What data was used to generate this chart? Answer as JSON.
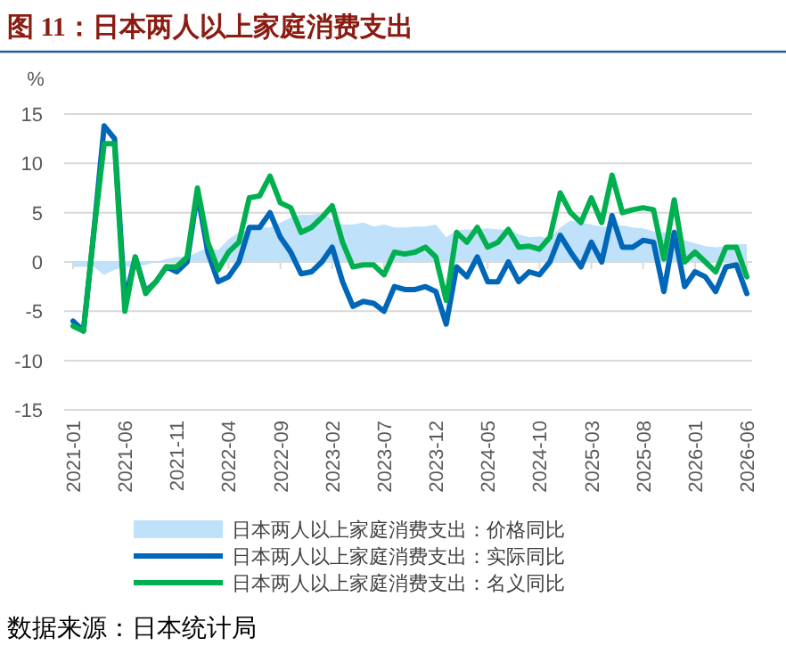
{
  "chart_data": {
    "type": "line",
    "title": "图 11：日本两人以上家庭消费支出",
    "ylabel": "%",
    "categories": [
      "2021-01",
      null,
      null,
      null,
      null,
      "2021-06",
      null,
      null,
      null,
      null,
      "2021-11",
      null,
      null,
      null,
      null,
      "2022-04",
      null,
      null,
      null,
      null,
      "2022-09",
      null,
      null,
      null,
      null,
      "2023-02",
      null,
      null,
      null,
      null,
      "2023-07",
      null,
      null,
      null,
      null,
      "2023-12",
      null,
      null,
      null,
      null,
      "2024-05",
      null,
      null,
      null,
      null,
      "2024-10",
      null,
      null,
      null,
      null,
      "2025-03",
      null,
      null,
      null,
      null,
      "2025-08",
      null,
      null,
      null,
      null,
      "2026-01",
      null,
      null,
      null,
      null,
      "2026-06"
    ],
    "series": [
      {
        "name": "日本两人以上家庭消费支出：价格同比",
        "type": "area",
        "color": "#bfe1fa",
        "values": [
          -0.5,
          -0.5,
          -0.5,
          -1.3,
          -0.8,
          -0.5,
          -0.5,
          -0.3,
          0,
          0.3,
          0.5,
          0.5,
          1,
          1.5,
          1.2,
          2.3,
          3,
          3.2,
          3.5,
          3.5,
          4,
          4.5,
          4.8,
          4.8,
          5,
          4.3,
          3.8,
          3.8,
          4,
          3.6,
          3.8,
          3.5,
          3.5,
          3.6,
          3.6,
          3.8,
          2.5,
          3.2,
          3.3,
          3.3,
          3.4,
          3.3,
          3.3,
          2.8,
          2.5,
          2.6,
          2.4,
          3.5,
          4.2,
          4,
          3.8,
          3.6,
          3.6,
          3.7,
          3.5,
          3.4,
          3.1,
          3,
          2.8,
          2.2,
          1.9,
          1.6,
          1.5,
          1.6,
          1.8,
          1.8
        ]
      },
      {
        "name": "日本两人以上家庭消费支出：实际同比",
        "color": "#0066b8",
        "values": [
          -6,
          -7,
          3,
          13.8,
          12.5,
          -4,
          0.5,
          -3,
          -2,
          -0.5,
          -1,
          0,
          7,
          1,
          -2,
          -1.5,
          0,
          3.5,
          3.5,
          5,
          2.5,
          1,
          -1.2,
          -1,
          0,
          1.5,
          -2,
          -4.5,
          -4,
          -4.2,
          -5,
          -2.5,
          -2.8,
          -2.8,
          -2.5,
          -3,
          -6.3,
          -0.5,
          -1.5,
          0.5,
          -2,
          -2,
          0,
          -2,
          -1,
          -1.3,
          0,
          2.7,
          1,
          -0.5,
          2,
          0,
          4.7,
          1.5,
          1.5,
          2.2,
          2,
          -3,
          3,
          -2.5,
          -1,
          -1.5,
          -3,
          -0.5,
          -0.3,
          -3.2
        ]
      },
      {
        "name": "日本两人以上家庭消费支出：名义同比",
        "color": "#00b050",
        "values": [
          -6.5,
          -7,
          3,
          12,
          12,
          -5,
          0.5,
          -3.2,
          -2,
          -0.5,
          -0.5,
          0.5,
          7.5,
          2,
          -0.8,
          1,
          2,
          6.5,
          6.7,
          8.7,
          6,
          5.5,
          3,
          3.5,
          4.5,
          5.7,
          2,
          -0.5,
          -0.3,
          -0.3,
          -1.3,
          1,
          0.8,
          1,
          1.5,
          0.5,
          -3.9,
          3,
          2,
          3.5,
          1.5,
          2,
          3.3,
          1.5,
          1.6,
          1.3,
          2.5,
          7,
          5,
          4,
          6.5,
          4,
          8.8,
          5,
          5.3,
          5.5,
          5.3,
          0.3,
          6.3,
          0,
          1,
          0,
          -1,
          1.5,
          1.5,
          -1.5
        ]
      }
    ],
    "ylim": [
      -15,
      15
    ],
    "yticks": [
      -15,
      -10,
      -5,
      0,
      5,
      10,
      15
    ],
    "grid": "y",
    "legend": "bottom",
    "annotations": [
      "数据来源：日本统计局"
    ]
  }
}
